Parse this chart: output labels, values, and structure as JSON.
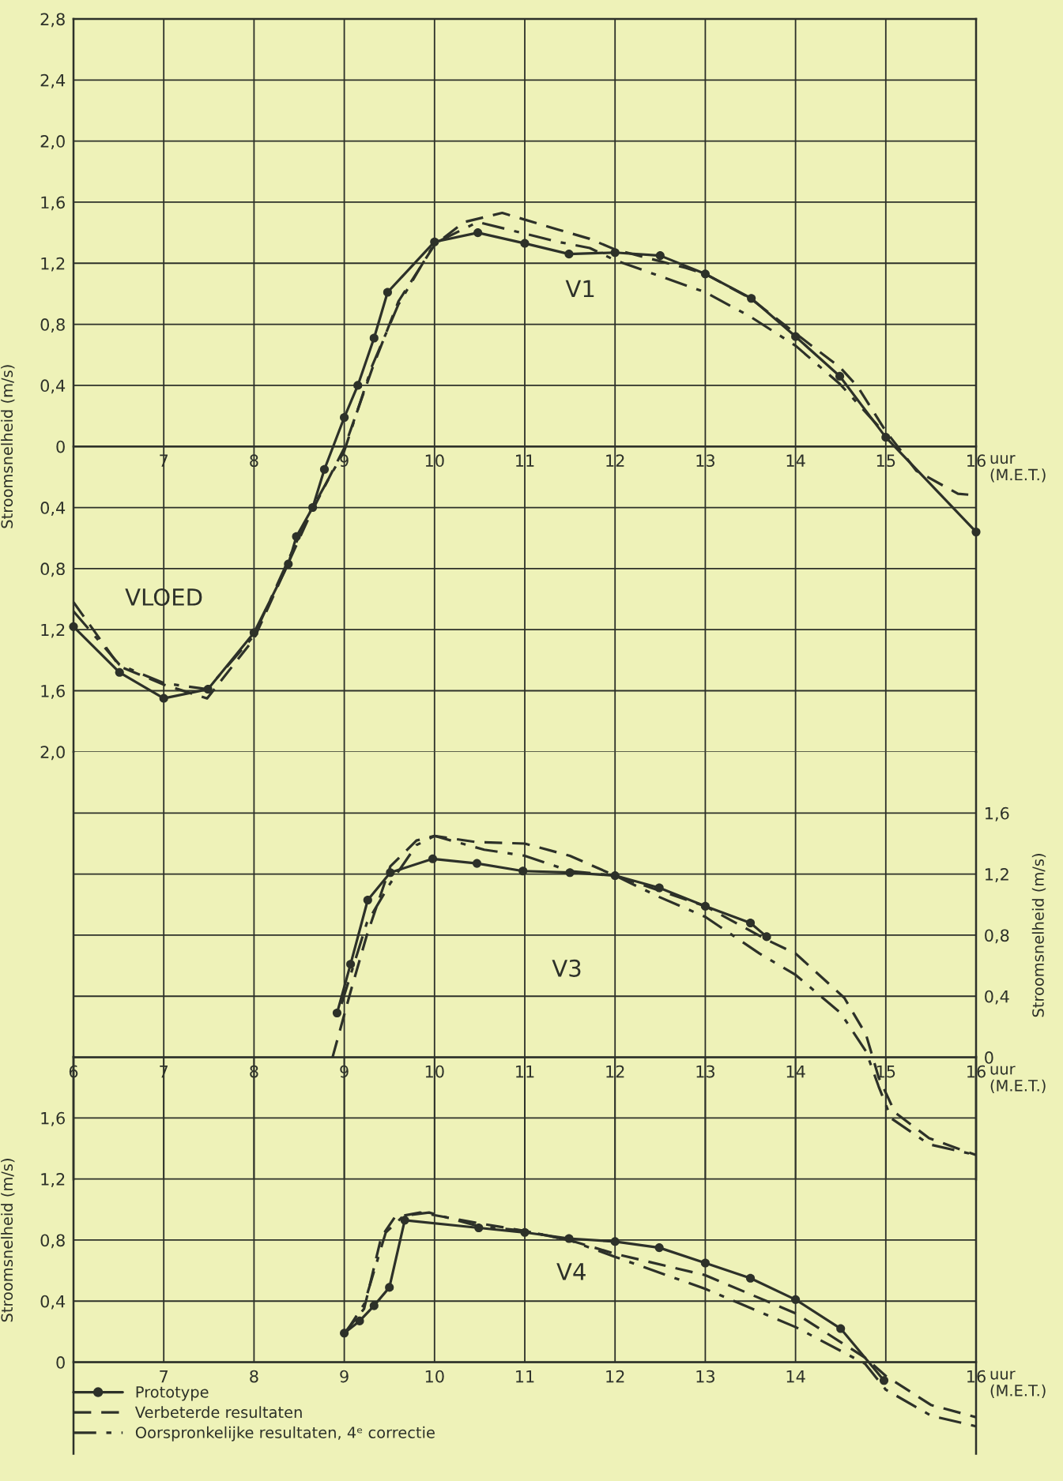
{
  "chart_data": [
    {
      "type": "line",
      "ylabel": "Stroomsnelheid (m/s)",
      "xlabel": "uur (M.E.T.)",
      "xlim": [
        6,
        16
      ],
      "xticks": [
        7,
        8,
        9,
        10,
        11,
        12,
        13,
        14,
        15,
        16
      ],
      "ylim": [
        -2.0,
        2.8
      ],
      "yticks": [
        {
          "value": 2.8,
          "label": "2,8"
        },
        {
          "value": 2.4,
          "label": "2,4"
        },
        {
          "value": 2.0,
          "label": "2,0"
        },
        {
          "value": 1.6,
          "label": "1,6"
        },
        {
          "value": 1.2,
          "label": "1,2"
        },
        {
          "value": 0.8,
          "label": "0,8"
        },
        {
          "value": 0.4,
          "label": "0,4"
        },
        0,
        {
          "value": -0.4,
          "label": "0,4"
        },
        {
          "value": -0.8,
          "label": "0,8"
        },
        {
          "value": -1.2,
          "label": "1,2"
        },
        {
          "value": -1.6,
          "label": "1,6"
        },
        {
          "value": -2.0,
          "label": "2,0"
        }
      ],
      "grid": true,
      "annotations": [
        "V1",
        "VLOED"
      ],
      "series": [
        {
          "color": "#2d3129",
          "line_style": "solid",
          "marker": "circle",
          "x": [
            6.0,
            6.51,
            7.0,
            7.49,
            8.0,
            8.38,
            8.47,
            8.65,
            8.78,
            9.0,
            9.15,
            9.33,
            9.48,
            10.0,
            10.48,
            11.0,
            11.49,
            12.0,
            12.5,
            13.0,
            13.51,
            14.0,
            14.49,
            15.0,
            16.0
          ],
          "values": [
            -1.18,
            -1.48,
            -1.65,
            -1.59,
            -1.22,
            -0.77,
            -0.59,
            -0.4,
            -0.15,
            0.19,
            0.4,
            0.71,
            1.01,
            1.34,
            1.4,
            1.33,
            1.26,
            1.27,
            1.25,
            1.13,
            0.97,
            0.72,
            0.46,
            0.06,
            -0.56
          ]
        },
        {
          "color": "#2d3129",
          "line_style": "dashed",
          "marker": "none",
          "x": [
            6.0,
            6.51,
            7.0,
            7.48,
            8.0,
            8.62,
            9.0,
            9.31,
            9.6,
            10.0,
            10.33,
            10.75,
            11.37,
            11.72,
            12.0,
            12.78,
            13.0,
            13.5,
            14.0,
            14.49,
            14.69,
            15.0,
            15.34,
            15.8,
            16.0
          ],
          "values": [
            -1.02,
            -1.44,
            -1.56,
            -1.65,
            -1.26,
            -0.45,
            -0.01,
            0.51,
            0.95,
            1.32,
            1.47,
            1.53,
            1.42,
            1.36,
            1.29,
            1.17,
            1.13,
            0.97,
            0.74,
            0.52,
            0.39,
            0.1,
            -0.16,
            -0.31,
            -0.32
          ]
        },
        {
          "color": "#2d3129",
          "line_style": "dashdot",
          "marker": "none",
          "x": [
            6.0,
            6.51,
            7.0,
            7.48,
            8.0,
            8.62,
            9.0,
            9.31,
            9.6,
            10.0,
            10.48,
            11.37,
            11.72,
            12.0,
            13.0,
            13.5,
            14.0,
            14.49,
            15.0
          ],
          "values": [
            -1.08,
            -1.43,
            -1.55,
            -1.59,
            -1.24,
            -0.43,
            -0.03,
            0.53,
            0.93,
            1.33,
            1.47,
            1.34,
            1.3,
            1.22,
            1.01,
            0.85,
            0.66,
            0.41,
            0.08
          ]
        }
      ]
    },
    {
      "type": "line",
      "y2label": "Stroomsnelheid (m/s)",
      "xlabel": "uur (M.E.T.)",
      "xlim": [
        6,
        16
      ],
      "xticks": [
        6,
        7,
        8,
        9,
        10,
        11,
        12,
        13,
        14,
        15,
        16
      ],
      "y2lim": [
        -0.8,
        2.0
      ],
      "y2ticks": [
        0,
        {
          "value": 0.4,
          "label": "0,4"
        },
        {
          "value": 0.8,
          "label": "0,8"
        },
        {
          "value": 1.2,
          "label": "1,2"
        },
        {
          "value": 1.6,
          "label": "1,6"
        }
      ],
      "grid": true,
      "annotations": [
        "V3"
      ],
      "series": [
        {
          "color": "#2d3129",
          "axis": "y2",
          "line_style": "solid",
          "marker": "circle",
          "x": [
            8.92,
            9.07,
            9.26,
            9.51,
            9.98,
            10.47,
            10.98,
            11.5,
            12.0,
            12.49,
            13.0,
            13.5,
            13.68
          ],
          "values": [
            0.29,
            0.61,
            1.03,
            1.21,
            1.3,
            1.27,
            1.22,
            1.21,
            1.19,
            1.11,
            0.99,
            0.88,
            0.79
          ]
        },
        {
          "color": "#2d3129",
          "axis": "y2",
          "line_style": "dashed",
          "marker": "none",
          "x": [
            8.87,
            9.07,
            9.25,
            9.51,
            9.8,
            10.0,
            10.46,
            11.0,
            11.5,
            12.0,
            13.0,
            13.68,
            14.0,
            14.54,
            14.78,
            14.92,
            15.1,
            15.48,
            16.0
          ],
          "values": [
            0.0,
            0.43,
            0.8,
            1.25,
            1.42,
            1.45,
            1.41,
            1.4,
            1.32,
            1.19,
            0.99,
            0.77,
            0.68,
            0.39,
            0.15,
            -0.13,
            -0.36,
            -0.53,
            -0.64
          ]
        },
        {
          "color": "#2d3129",
          "axis": "y2",
          "line_style": "dashdot",
          "marker": "none",
          "x": [
            8.97,
            9.25,
            9.51,
            9.8,
            10.0,
            10.55,
            11.0,
            11.5,
            12.0,
            12.49,
            13.0,
            13.6,
            14.0,
            14.5,
            14.78,
            14.92,
            15.06,
            15.48,
            16.0
          ],
          "values": [
            0.35,
            0.88,
            1.14,
            1.39,
            1.45,
            1.36,
            1.32,
            1.22,
            1.19,
            1.05,
            0.92,
            0.68,
            0.54,
            0.29,
            0.04,
            -0.19,
            -0.4,
            -0.57,
            -0.64
          ]
        }
      ]
    },
    {
      "type": "line",
      "ylabel": "Stroomsnelheid (m/s)",
      "xlabel": "uur (M.E.T.)",
      "xlim": [
        6,
        16
      ],
      "xticks": [
        7,
        8,
        9,
        10,
        11,
        12,
        13,
        14,
        {
          "value": 15,
          "label": null
        },
        16
      ],
      "ylim": [
        -0.6,
        2.0
      ],
      "yticks": [
        0,
        {
          "value": 0.4,
          "label": "0,4"
        },
        {
          "value": 0.8,
          "label": "0,8"
        },
        {
          "value": 1.2,
          "label": "1,2"
        },
        {
          "value": 1.6,
          "label": "1,6"
        }
      ],
      "grid": true,
      "legend": "bottom",
      "annotations": [
        "V4"
      ],
      "series": [
        {
          "name": "Prototype",
          "color": "#2d3129",
          "line_style": "solid",
          "marker": "circle",
          "x": [
            9.0,
            9.17,
            9.33,
            9.5,
            9.67,
            10.49,
            11.0,
            11.49,
            12.0,
            12.49,
            13.0,
            13.5,
            14.0,
            14.5,
            14.98
          ],
          "values": [
            0.19,
            0.27,
            0.37,
            0.49,
            0.93,
            0.88,
            0.85,
            0.81,
            0.79,
            0.75,
            0.65,
            0.55,
            0.41,
            0.22,
            -0.12
          ]
        },
        {
          "name": "Verbeterde resultaten",
          "color": "#2d3129",
          "line_style": "dashed",
          "marker": "none",
          "x": [
            9.0,
            9.22,
            9.41,
            9.56,
            9.84,
            10.49,
            11.0,
            11.49,
            12.0,
            13.0,
            14.0,
            14.77,
            15.0,
            15.5,
            16.0
          ],
          "values": [
            0.19,
            0.35,
            0.82,
            0.95,
            0.98,
            0.91,
            0.86,
            0.8,
            0.71,
            0.57,
            0.32,
            0.03,
            -0.09,
            -0.28,
            -0.36
          ]
        },
        {
          "name": "Oorspronkelijke resultaten, 4ᵉ correctie",
          "color": "#2d3129",
          "line_style": "dashdot",
          "marker": "none",
          "x": [
            9.0,
            9.22,
            9.46,
            9.66,
            9.94,
            10.49,
            11.0,
            11.49,
            12.0,
            13.0,
            14.0,
            14.77,
            15.0,
            15.5,
            16.0
          ],
          "values": [
            0.18,
            0.38,
            0.85,
            0.96,
            0.98,
            0.89,
            0.86,
            0.8,
            0.69,
            0.48,
            0.23,
            -0.01,
            -0.18,
            -0.35,
            -0.42
          ]
        }
      ]
    }
  ]
}
